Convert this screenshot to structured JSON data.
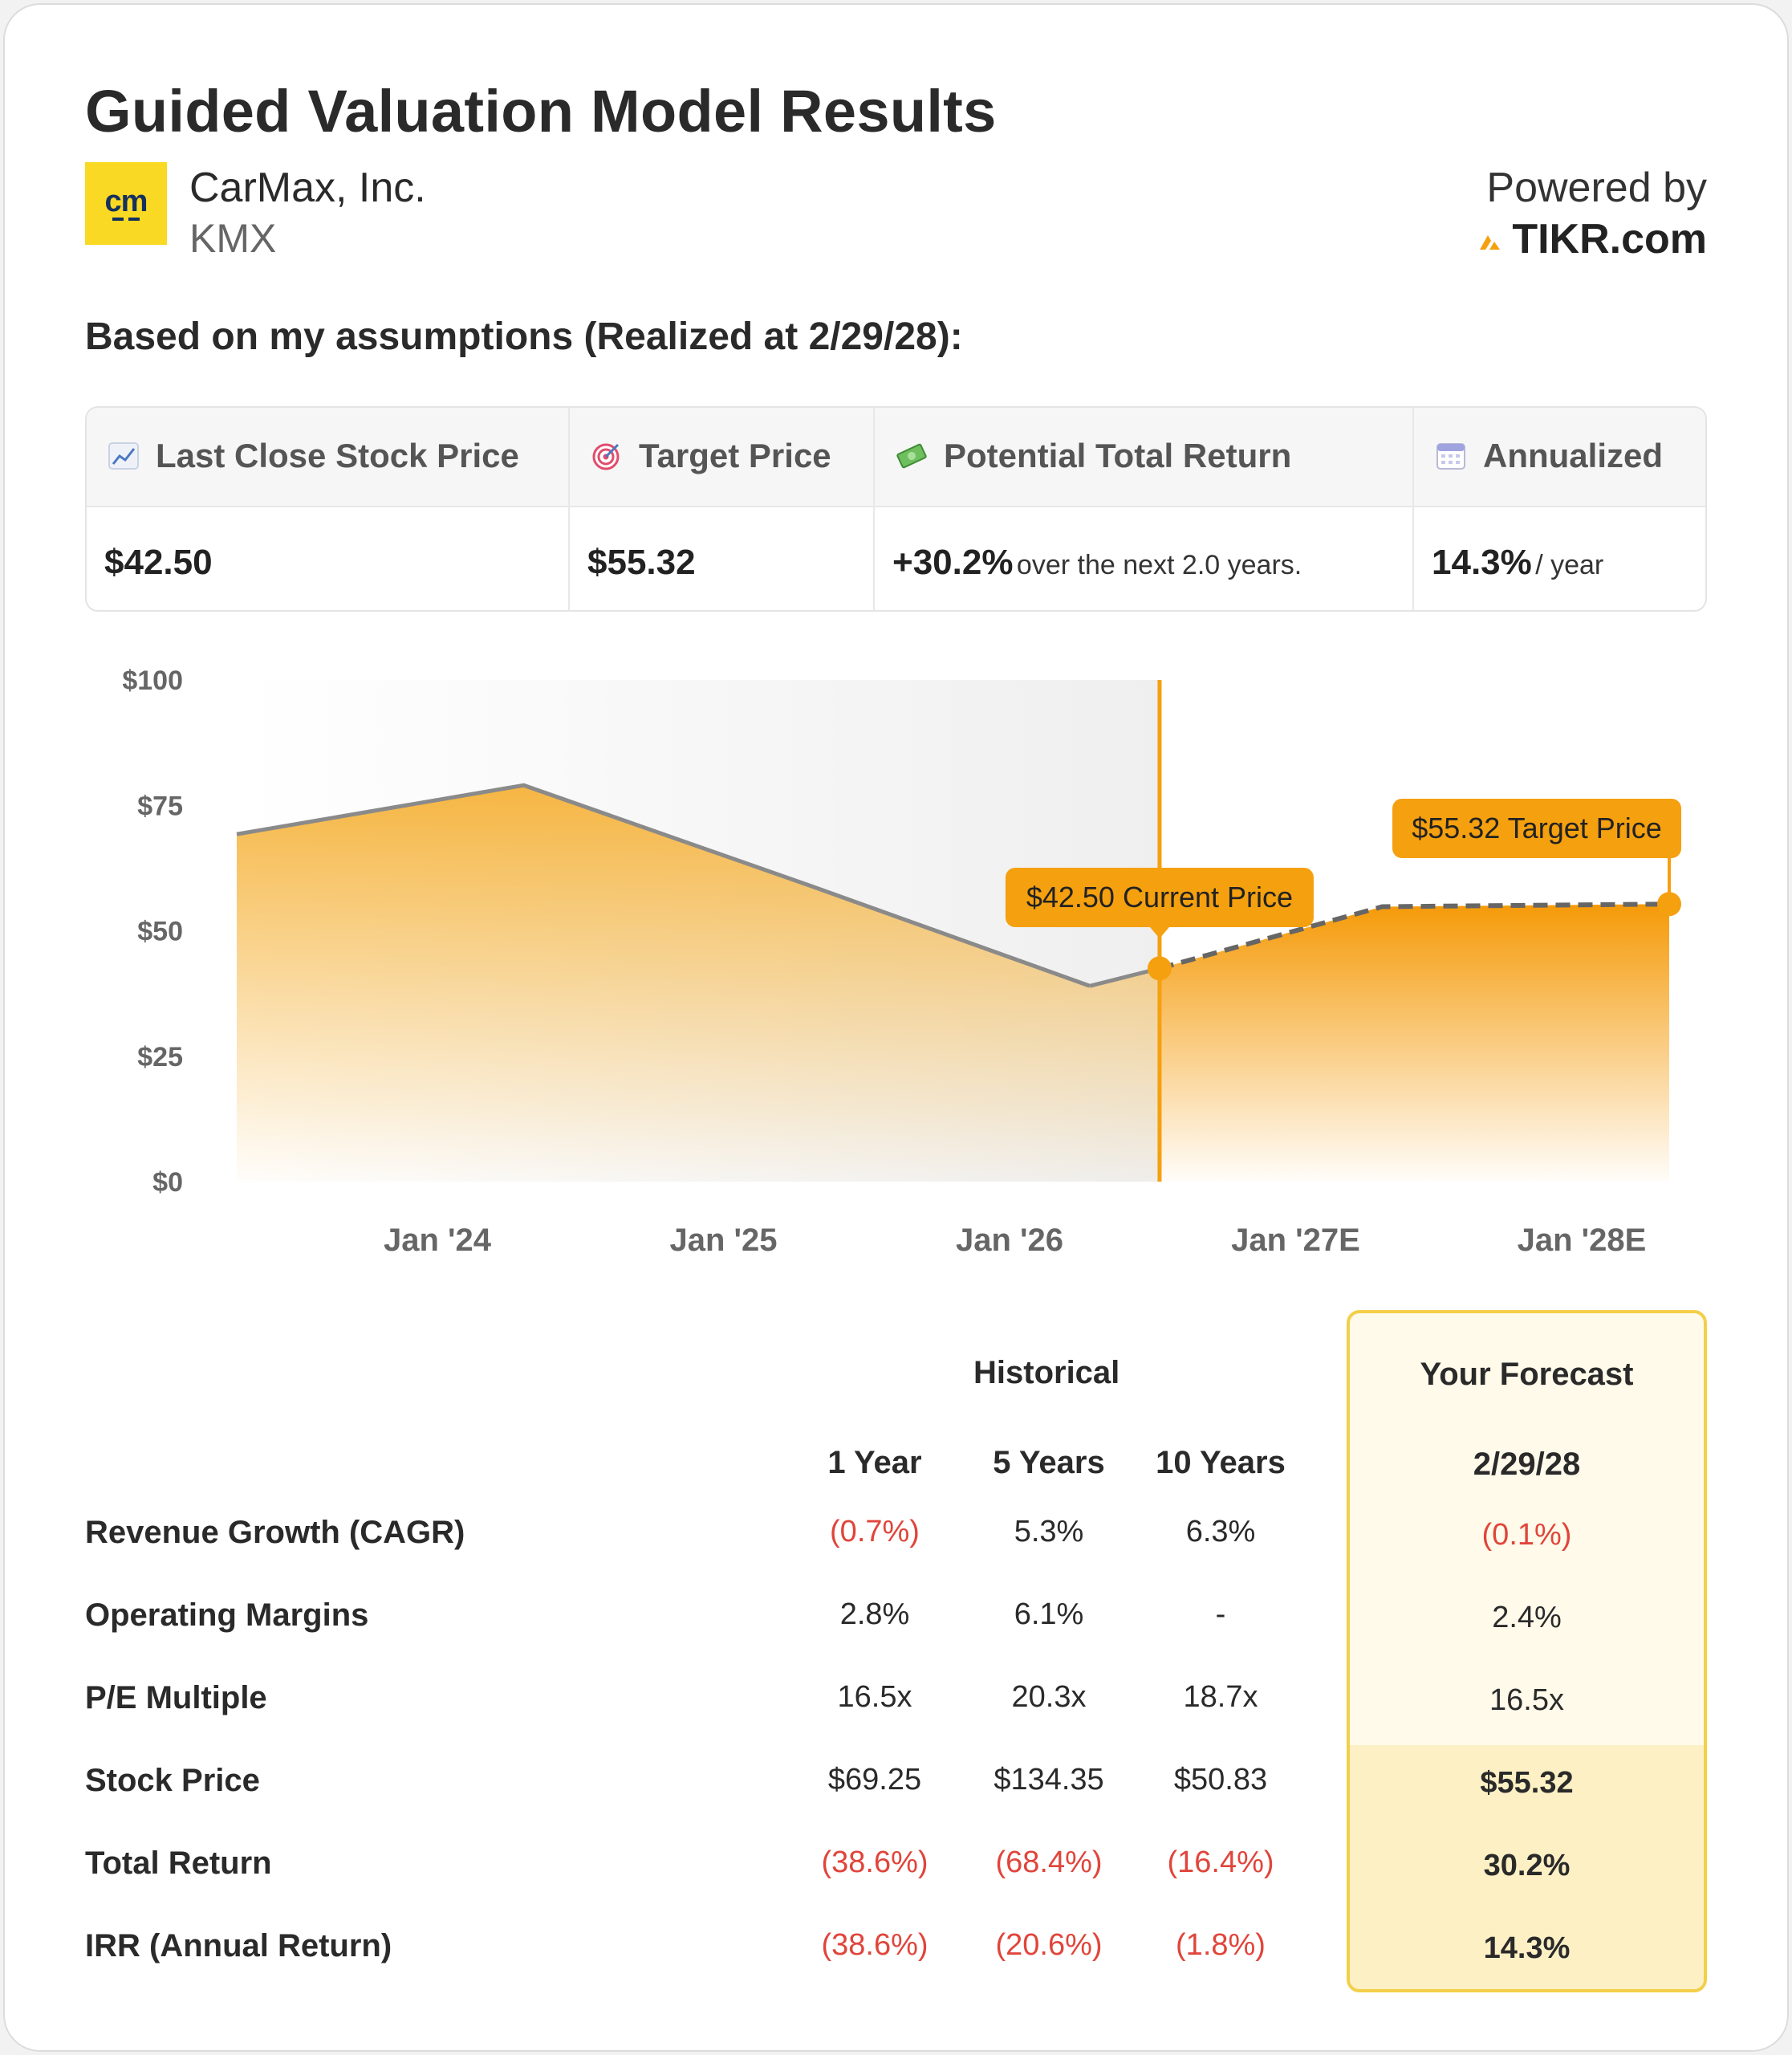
{
  "header": {
    "title": "Guided Valuation Model Results",
    "company_name": "CarMax, Inc.",
    "ticker": "KMX",
    "logo_text": "cm",
    "powered_by": "Powered by",
    "brand": "TIKR.com",
    "assumptions": "Based on my assumptions (Realized at 2/29/28):"
  },
  "summary": {
    "columns": [
      {
        "label": "Last Close Stock Price",
        "icon": "chart-up-icon",
        "value": "$42.50",
        "suffix": ""
      },
      {
        "label": "Target Price",
        "icon": "target-icon",
        "value": "$55.32",
        "suffix": ""
      },
      {
        "label": "Potential Total Return",
        "icon": "money-icon",
        "value": "+30.2%",
        "suffix": "over the next 2.0 years."
      },
      {
        "label": "Annualized",
        "icon": "calendar-icon",
        "value": "14.3%",
        "suffix": "/ year"
      }
    ]
  },
  "chart_data": {
    "type": "area",
    "y_ticks": [
      "$100",
      "$75",
      "$50",
      "$25",
      "$0"
    ],
    "ylim": [
      0,
      100
    ],
    "x_ticks": [
      "Jan '24",
      "Jan '25",
      "Jan '26",
      "Jan '27E",
      "Jan '28E"
    ],
    "historical": [
      {
        "x": "2023-02-28",
        "y": 69.25
      },
      {
        "x": "2024-02-29",
        "y": 79.0
      },
      {
        "x": "2025-02-28",
        "y": 59.0
      },
      {
        "x": "2026-02-20",
        "y": 39.0
      },
      {
        "x": "2026-05-20",
        "y": 42.5
      }
    ],
    "forecast": [
      {
        "x": "2026-05-20",
        "y": 42.5
      },
      {
        "x": "2027-02-28",
        "y": 54.8
      },
      {
        "x": "2028-02-29",
        "y": 55.32
      }
    ],
    "annotations": [
      {
        "text": "$42.50 Current Price",
        "x": "2026-05-20",
        "y": 42.5
      },
      {
        "text": "$55.32 Target Price",
        "x": "2028-02-29",
        "y": 55.32
      }
    ],
    "colors": {
      "accent": "#f5a00f",
      "line": "#8a8a8a",
      "dashed": "#666666"
    }
  },
  "metrics": {
    "historical_label": "Historical",
    "forecast_label": "Your Forecast",
    "col_headers": [
      "1 Year",
      "5 Years",
      "10 Years",
      "2/29/28"
    ],
    "rows": [
      {
        "label": "Revenue Growth (CAGR)",
        "values": [
          "(0.7%)",
          "5.3%",
          "6.3%",
          "(0.1%)"
        ]
      },
      {
        "label": "Operating Margins",
        "values": [
          "2.8%",
          "6.1%",
          "-",
          "2.4%"
        ]
      },
      {
        "label": "P/E Multiple",
        "values": [
          "16.5x",
          "20.3x",
          "18.7x",
          "16.5x"
        ]
      },
      {
        "label": "Stock Price",
        "values": [
          "$69.25",
          "$134.35",
          "$50.83",
          "$55.32"
        ]
      },
      {
        "label": "Total Return",
        "values": [
          "(38.6%)",
          "(68.4%)",
          "(16.4%)",
          "30.2%"
        ]
      },
      {
        "label": "IRR (Annual Return)",
        "values": [
          "(38.6%)",
          "(20.6%)",
          "(1.8%)",
          "14.3%"
        ]
      }
    ]
  }
}
